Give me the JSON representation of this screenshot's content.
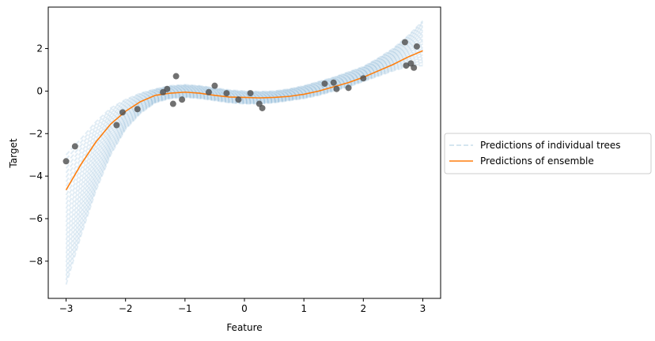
{
  "chart_data": {
    "type": "scatter",
    "xlabel": "Feature",
    "ylabel": "Target",
    "xlim": [
      -3.3,
      3.3
    ],
    "ylim": [
      -9.75,
      3.95
    ],
    "xticks": [
      -3,
      -2,
      -1,
      0,
      1,
      2,
      3
    ],
    "yticks": [
      -8,
      -6,
      -4,
      -2,
      0,
      2
    ],
    "xtick_labels": [
      "−3",
      "−2",
      "−1",
      "0",
      "1",
      "2",
      "3"
    ],
    "ytick_labels": [
      "−8",
      "−6",
      "−4",
      "−2",
      "0",
      "2"
    ],
    "legend_position": "right-outside",
    "legend": [
      {
        "label": "Predictions of individual trees",
        "style": "dashed",
        "color": "#1f77b4"
      },
      {
        "label": "Predictions of ensemble",
        "style": "solid",
        "color": "#ff7f0e"
      }
    ],
    "points": {
      "color": "#4d4d4d",
      "x": [
        -3.0,
        -2.85,
        -2.15,
        -2.05,
        -1.8,
        -1.37,
        -1.3,
        -1.2,
        -1.15,
        -1.05,
        -0.6,
        -0.5,
        -0.3,
        -0.1,
        0.1,
        0.25,
        0.3,
        1.35,
        1.5,
        1.55,
        1.75,
        2.0,
        2.7,
        2.72,
        2.8,
        2.85,
        2.9
      ],
      "y": [
        -3.3,
        -2.6,
        -1.6,
        -1.0,
        -0.85,
        -0.05,
        0.1,
        -0.6,
        0.7,
        -0.4,
        -0.05,
        0.25,
        -0.1,
        -0.4,
        -0.1,
        -0.6,
        -0.8,
        0.35,
        0.4,
        0.1,
        0.15,
        0.6,
        2.3,
        1.2,
        1.3,
        1.1,
        2.1
      ]
    },
    "series": [
      {
        "name": "Predictions of ensemble",
        "color": "#ff7f0e",
        "x": [
          -3.0,
          -2.75,
          -2.5,
          -2.25,
          -2.0,
          -1.75,
          -1.5,
          -1.25,
          -1.0,
          -0.75,
          -0.5,
          -0.25,
          0.0,
          0.25,
          0.5,
          0.75,
          1.0,
          1.25,
          1.5,
          1.75,
          2.0,
          2.25,
          2.5,
          2.75,
          3.0
        ],
        "y": [
          -4.65,
          -3.45,
          -2.4,
          -1.55,
          -0.95,
          -0.5,
          -0.2,
          -0.1,
          -0.05,
          -0.1,
          -0.2,
          -0.28,
          -0.3,
          -0.32,
          -0.3,
          -0.25,
          -0.15,
          0.0,
          0.2,
          0.4,
          0.65,
          0.95,
          1.25,
          1.6,
          1.9
        ]
      }
    ],
    "trees": {
      "color": "#1f77b4",
      "style": "dashed",
      "x": [
        -3.0,
        -2.75,
        -2.5,
        -2.25,
        -2.0,
        -1.75,
        -1.5,
        -1.25,
        -1.0,
        -0.75,
        -0.5,
        -0.25,
        0.0,
        0.25,
        0.5,
        0.75,
        1.0,
        1.25,
        1.5,
        1.75,
        2.0,
        2.25,
        2.5,
        2.75,
        3.0
      ],
      "y_lower": [
        -9.1,
        -6.8,
        -4.7,
        -3.0,
        -1.8,
        -1.05,
        -0.55,
        -0.35,
        -0.3,
        -0.35,
        -0.45,
        -0.55,
        -0.6,
        -0.6,
        -0.55,
        -0.45,
        -0.35,
        -0.2,
        0.0,
        0.2,
        0.45,
        0.7,
        0.95,
        1.15,
        1.2
      ],
      "y_upper": [
        -3.0,
        -2.25,
        -1.45,
        -0.8,
        -0.4,
        -0.1,
        0.1,
        0.25,
        0.3,
        0.25,
        0.15,
        0.05,
        0.0,
        -0.02,
        0.0,
        0.1,
        0.25,
        0.45,
        0.65,
        0.9,
        1.15,
        1.55,
        2.0,
        2.6,
        3.3
      ]
    }
  }
}
